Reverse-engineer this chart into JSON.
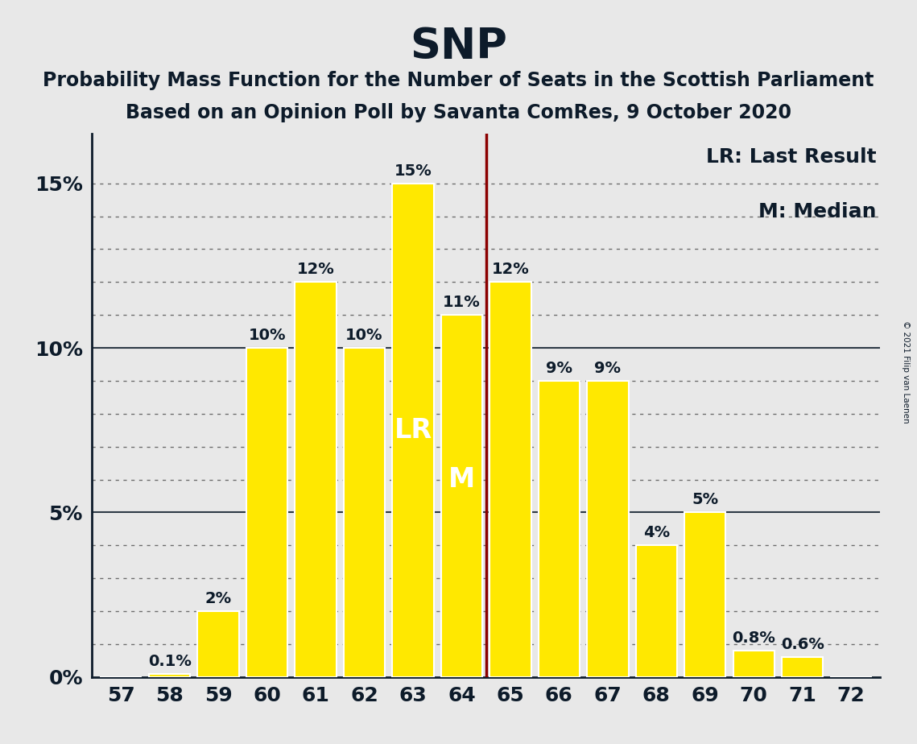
{
  "title": "SNP",
  "subtitle1": "Probability Mass Function for the Number of Seats in the Scottish Parliament",
  "subtitle2": "Based on an Opinion Poll by Savanta ComRes, 9 October 2020",
  "copyright": "© 2021 Filip van Laenen",
  "seats": [
    57,
    58,
    59,
    60,
    61,
    62,
    63,
    64,
    65,
    66,
    67,
    68,
    69,
    70,
    71,
    72
  ],
  "probabilities": [
    0.0,
    0.1,
    2.0,
    10.0,
    12.0,
    10.0,
    15.0,
    11.0,
    12.0,
    9.0,
    9.0,
    4.0,
    5.0,
    0.8,
    0.6,
    0.0
  ],
  "bar_color": "#FFE800",
  "bar_edge_color": "#FFFFFF",
  "last_result_seat": 63,
  "median_seat": 64,
  "lr_line_x": 64.5,
  "lr_line_color": "#8B0000",
  "background_color": "#E8E8E8",
  "axis_color": "#0D1B2A",
  "text_color": "#0D1B2A",
  "legend_lr": "LR: Last Result",
  "legend_m": "M: Median",
  "ytick_labels": [
    "0%",
    "5%",
    "10%",
    "15%"
  ],
  "ytick_values": [
    0,
    5,
    10,
    15
  ],
  "solid_hlines": [
    5,
    10
  ],
  "dotted_hlines": [
    1,
    2,
    3,
    4,
    6,
    7,
    8,
    9,
    11,
    12,
    13,
    14,
    15
  ],
  "ylim": [
    0,
    16.5
  ],
  "xlim": [
    56.4,
    72.6
  ],
  "title_fontsize": 38,
  "subtitle_fontsize": 17,
  "tick_fontsize": 18,
  "bar_label_fontsize": 14,
  "lr_m_fontsize": 24,
  "legend_fontsize": 18
}
